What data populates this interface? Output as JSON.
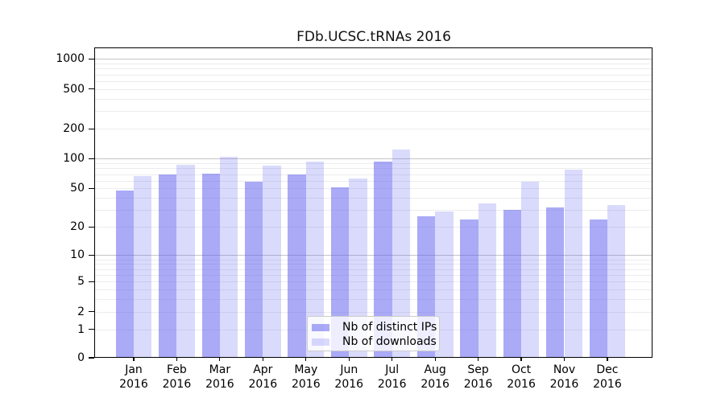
{
  "page": {
    "background": "#ffffff"
  },
  "chart_data": {
    "type": "bar",
    "title": "FDb.UCSC.tRNAs 2016",
    "categories": [
      "Jan 2016",
      "Feb 2016",
      "Mar 2016",
      "Apr 2016",
      "May 2016",
      "Jun 2016",
      "Jul 2016",
      "Aug 2016",
      "Sep 2016",
      "Oct 2016",
      "Nov 2016",
      "Dec 2016"
    ],
    "series": [
      {
        "name": "Nb of distinct IPs",
        "color": "#aaaaf7",
        "fill": "rgba(85,85,240,0.5)",
        "values": [
          48,
          70,
          71,
          59,
          70,
          51,
          93,
          26,
          24,
          30,
          32,
          24
        ]
      },
      {
        "name": "Nb of downloads",
        "color": "#d9d9f9",
        "fill": "rgba(85,85,240,0.22)",
        "values": [
          67,
          87,
          104,
          85,
          94,
          63,
          123,
          29,
          35,
          59,
          77,
          34
        ]
      }
    ],
    "xlabel": "",
    "ylabel": "",
    "y_scale": "log1p",
    "y_ticks": [
      1000,
      500,
      200,
      100,
      50,
      20,
      10,
      5,
      2,
      1,
      0
    ],
    "ylim": [
      0,
      1300
    ],
    "grid": "on",
    "grid_minor_color": "#ececec",
    "grid_decade_color": "#c6c6c6",
    "legend_position": "lower-center-inside"
  },
  "legend": {
    "items": [
      {
        "label": "Nb of distinct IPs"
      },
      {
        "label": "Nb of downloads"
      }
    ]
  }
}
